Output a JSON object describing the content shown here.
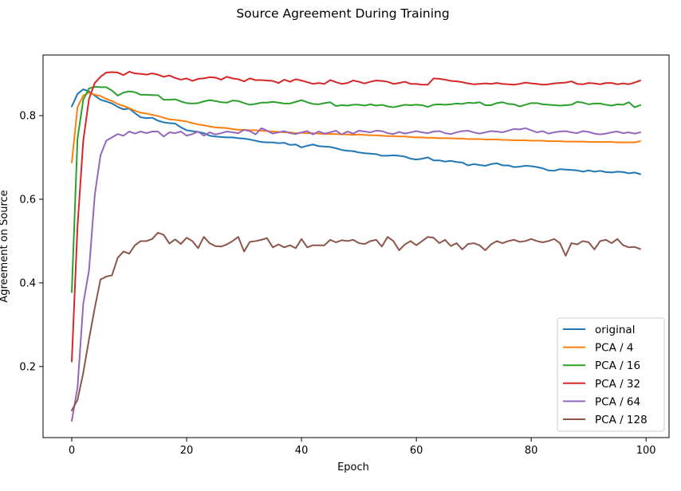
{
  "chart_data": {
    "type": "line",
    "title": "Source Agreement During Training",
    "xlabel": "Epoch",
    "ylabel": "Agreement on Source",
    "xlim": [
      -5,
      104
    ],
    "ylim": [
      0.03,
      0.945
    ],
    "xticks": [
      0,
      20,
      40,
      60,
      80,
      100
    ],
    "yticks": [
      0.2,
      0.4,
      0.6,
      0.8
    ],
    "xtick_labels": [
      "0",
      "20",
      "40",
      "60",
      "80",
      "100"
    ],
    "ytick_labels": [
      "0.2",
      "0.4",
      "0.6",
      "0.8"
    ],
    "grid": false,
    "legend_position": "lower-right",
    "x": [
      0,
      1,
      2,
      3,
      4,
      5,
      6,
      7,
      8,
      9,
      10,
      11,
      12,
      13,
      14,
      15,
      16,
      17,
      18,
      19,
      20,
      21,
      22,
      23,
      24,
      25,
      26,
      27,
      28,
      29,
      30,
      31,
      32,
      33,
      34,
      35,
      36,
      37,
      38,
      39,
      40,
      41,
      42,
      43,
      44,
      45,
      46,
      47,
      48,
      49,
      50,
      51,
      52,
      53,
      54,
      55,
      56,
      57,
      58,
      59,
      60,
      61,
      62,
      63,
      64,
      65,
      66,
      67,
      68,
      69,
      70,
      71,
      72,
      73,
      74,
      75,
      76,
      77,
      78,
      79,
      80,
      81,
      82,
      83,
      84,
      85,
      86,
      87,
      88,
      89,
      90,
      91,
      92,
      93,
      94,
      95,
      96,
      97,
      98,
      99
    ],
    "series": [
      {
        "name": "original",
        "color": "#1f77b4",
        "values": [
          0.822,
          0.852,
          0.863,
          0.858,
          0.848,
          0.838,
          0.834,
          0.829,
          0.821,
          0.815,
          0.817,
          0.806,
          0.796,
          0.794,
          0.795,
          0.788,
          0.784,
          0.782,
          0.781,
          0.772,
          0.765,
          0.763,
          0.761,
          0.758,
          0.752,
          0.75,
          0.749,
          0.748,
          0.748,
          0.746,
          0.745,
          0.743,
          0.74,
          0.737,
          0.736,
          0.736,
          0.734,
          0.735,
          0.73,
          0.731,
          0.724,
          0.728,
          0.731,
          0.727,
          0.726,
          0.725,
          0.722,
          0.718,
          0.716,
          0.715,
          0.712,
          0.71,
          0.709,
          0.708,
          0.704,
          0.704,
          0.705,
          0.704,
          0.702,
          0.697,
          0.695,
          0.697,
          0.7,
          0.693,
          0.693,
          0.69,
          0.692,
          0.689,
          0.688,
          0.681,
          0.684,
          0.682,
          0.68,
          0.684,
          0.686,
          0.681,
          0.681,
          0.677,
          0.678,
          0.68,
          0.679,
          0.677,
          0.674,
          0.669,
          0.668,
          0.672,
          0.671,
          0.67,
          0.669,
          0.666,
          0.669,
          0.666,
          0.668,
          0.665,
          0.664,
          0.666,
          0.665,
          0.662,
          0.664,
          0.66
        ]
      },
      {
        "name": "PCA / 4",
        "color": "#ff7f0e",
        "values": [
          0.688,
          0.82,
          0.848,
          0.855,
          0.85,
          0.847,
          0.84,
          0.835,
          0.828,
          0.823,
          0.818,
          0.812,
          0.807,
          0.805,
          0.802,
          0.799,
          0.795,
          0.791,
          0.79,
          0.788,
          0.786,
          0.782,
          0.779,
          0.777,
          0.774,
          0.772,
          0.771,
          0.77,
          0.768,
          0.766,
          0.766,
          0.765,
          0.765,
          0.764,
          0.763,
          0.762,
          0.761,
          0.76,
          0.76,
          0.758,
          0.759,
          0.758,
          0.758,
          0.757,
          0.756,
          0.756,
          0.756,
          0.755,
          0.755,
          0.754,
          0.755,
          0.754,
          0.753,
          0.753,
          0.752,
          0.751,
          0.751,
          0.75,
          0.75,
          0.749,
          0.748,
          0.748,
          0.747,
          0.747,
          0.746,
          0.746,
          0.746,
          0.745,
          0.745,
          0.744,
          0.744,
          0.744,
          0.743,
          0.743,
          0.743,
          0.742,
          0.742,
          0.741,
          0.741,
          0.741,
          0.74,
          0.74,
          0.74,
          0.739,
          0.739,
          0.739,
          0.738,
          0.738,
          0.738,
          0.738,
          0.737,
          0.737,
          0.737,
          0.737,
          0.737,
          0.736,
          0.736,
          0.736,
          0.736,
          0.739
        ]
      },
      {
        "name": "PCA / 16",
        "color": "#2ca02c",
        "values": [
          0.378,
          0.745,
          0.838,
          0.865,
          0.869,
          0.868,
          0.868,
          0.86,
          0.848,
          0.855,
          0.858,
          0.856,
          0.85,
          0.85,
          0.849,
          0.849,
          0.838,
          0.838,
          0.839,
          0.834,
          0.83,
          0.829,
          0.83,
          0.834,
          0.837,
          0.835,
          0.832,
          0.831,
          0.836,
          0.835,
          0.83,
          0.826,
          0.828,
          0.831,
          0.831,
          0.833,
          0.831,
          0.829,
          0.829,
          0.833,
          0.837,
          0.832,
          0.828,
          0.827,
          0.83,
          0.832,
          0.823,
          0.825,
          0.824,
          0.826,
          0.826,
          0.824,
          0.827,
          0.824,
          0.826,
          0.822,
          0.82,
          0.823,
          0.826,
          0.825,
          0.826,
          0.825,
          0.821,
          0.826,
          0.827,
          0.826,
          0.827,
          0.829,
          0.828,
          0.831,
          0.83,
          0.832,
          0.825,
          0.825,
          0.83,
          0.832,
          0.828,
          0.827,
          0.822,
          0.826,
          0.83,
          0.83,
          0.827,
          0.826,
          0.825,
          0.824,
          0.825,
          0.826,
          0.833,
          0.831,
          0.827,
          0.829,
          0.829,
          0.826,
          0.824,
          0.827,
          0.826,
          0.832,
          0.82,
          0.825
        ]
      },
      {
        "name": "PCA / 32",
        "color": "#d62728",
        "values": [
          0.212,
          0.535,
          0.74,
          0.84,
          0.878,
          0.893,
          0.903,
          0.904,
          0.903,
          0.897,
          0.905,
          0.901,
          0.9,
          0.898,
          0.901,
          0.898,
          0.893,
          0.896,
          0.89,
          0.886,
          0.889,
          0.883,
          0.888,
          0.889,
          0.892,
          0.891,
          0.886,
          0.893,
          0.889,
          0.887,
          0.882,
          0.889,
          0.885,
          0.885,
          0.884,
          0.883,
          0.878,
          0.886,
          0.881,
          0.887,
          0.884,
          0.88,
          0.876,
          0.878,
          0.876,
          0.885,
          0.88,
          0.876,
          0.878,
          0.884,
          0.881,
          0.877,
          0.881,
          0.884,
          0.883,
          0.881,
          0.876,
          0.878,
          0.881,
          0.876,
          0.876,
          0.874,
          0.874,
          0.889,
          0.888,
          0.886,
          0.883,
          0.882,
          0.88,
          0.877,
          0.875,
          0.876,
          0.877,
          0.876,
          0.878,
          0.876,
          0.875,
          0.874,
          0.876,
          0.879,
          0.877,
          0.876,
          0.874,
          0.875,
          0.877,
          0.878,
          0.879,
          0.882,
          0.876,
          0.875,
          0.878,
          0.877,
          0.875,
          0.878,
          0.878,
          0.875,
          0.877,
          0.875,
          0.879,
          0.884
        ]
      },
      {
        "name": "PCA / 64",
        "color": "#9467bd",
        "values": [
          0.07,
          0.15,
          0.35,
          0.43,
          0.61,
          0.705,
          0.74,
          0.748,
          0.756,
          0.752,
          0.762,
          0.757,
          0.762,
          0.758,
          0.762,
          0.762,
          0.75,
          0.76,
          0.758,
          0.762,
          0.752,
          0.756,
          0.762,
          0.752,
          0.76,
          0.755,
          0.758,
          0.762,
          0.76,
          0.758,
          0.766,
          0.763,
          0.755,
          0.77,
          0.764,
          0.757,
          0.76,
          0.763,
          0.758,
          0.756,
          0.76,
          0.763,
          0.755,
          0.762,
          0.757,
          0.76,
          0.764,
          0.755,
          0.762,
          0.757,
          0.764,
          0.762,
          0.76,
          0.764,
          0.763,
          0.758,
          0.756,
          0.761,
          0.757,
          0.76,
          0.763,
          0.76,
          0.758,
          0.762,
          0.763,
          0.758,
          0.756,
          0.76,
          0.763,
          0.764,
          0.76,
          0.757,
          0.76,
          0.763,
          0.762,
          0.76,
          0.764,
          0.768,
          0.767,
          0.77,
          0.765,
          0.76,
          0.763,
          0.757,
          0.76,
          0.762,
          0.763,
          0.76,
          0.758,
          0.763,
          0.761,
          0.757,
          0.755,
          0.757,
          0.76,
          0.762,
          0.758,
          0.76,
          0.757,
          0.76
        ]
      },
      {
        "name": "PCA / 128",
        "color": "#8c564b",
        "values": [
          0.095,
          0.12,
          0.185,
          0.265,
          0.34,
          0.408,
          0.415,
          0.418,
          0.46,
          0.475,
          0.47,
          0.49,
          0.5,
          0.5,
          0.505,
          0.52,
          0.515,
          0.494,
          0.504,
          0.493,
          0.508,
          0.5,
          0.483,
          0.51,
          0.495,
          0.488,
          0.487,
          0.492,
          0.5,
          0.51,
          0.475,
          0.498,
          0.5,
          0.503,
          0.507,
          0.485,
          0.492,
          0.485,
          0.49,
          0.483,
          0.505,
          0.485,
          0.49,
          0.49,
          0.49,
          0.503,
          0.497,
          0.502,
          0.5,
          0.503,
          0.495,
          0.493,
          0.5,
          0.503,
          0.487,
          0.51,
          0.5,
          0.478,
          0.492,
          0.5,
          0.49,
          0.5,
          0.51,
          0.508,
          0.495,
          0.503,
          0.488,
          0.495,
          0.48,
          0.493,
          0.495,
          0.49,
          0.478,
          0.492,
          0.5,
          0.495,
          0.5,
          0.503,
          0.498,
          0.5,
          0.505,
          0.5,
          0.497,
          0.5,
          0.505,
          0.495,
          0.465,
          0.495,
          0.492,
          0.5,
          0.497,
          0.48,
          0.5,
          0.503,
          0.495,
          0.505,
          0.49,
          0.485,
          0.486,
          0.481
        ]
      }
    ]
  }
}
